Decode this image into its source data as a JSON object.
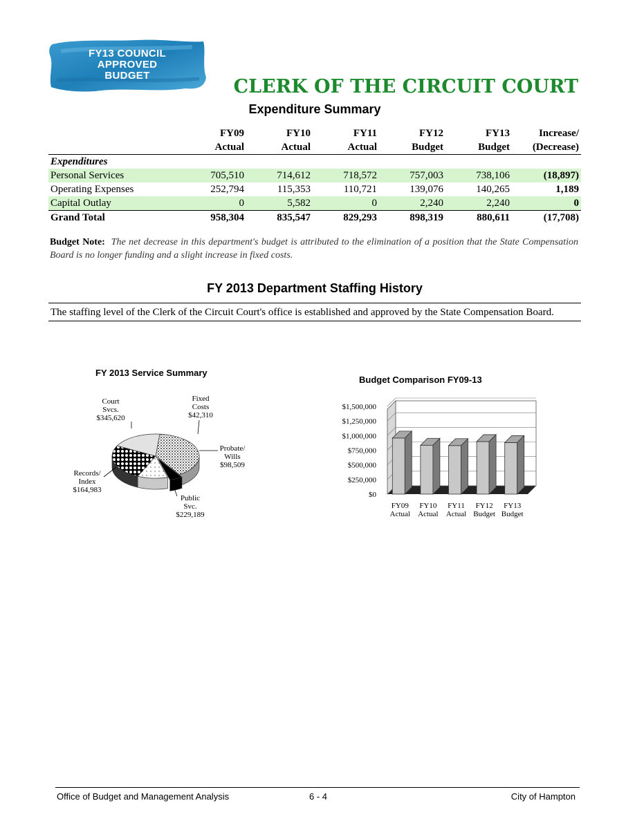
{
  "banner": {
    "line1": "FY13 COUNCIL",
    "line2": "APPROVED",
    "line3": "BUDGET"
  },
  "department_title": "CLERK OF THE CIRCUIT COURT",
  "expenditure_summary": {
    "title": "Expenditure Summary",
    "columns": [
      {
        "top": "FY09",
        "bottom": "Actual"
      },
      {
        "top": "FY10",
        "bottom": "Actual"
      },
      {
        "top": "FY11",
        "bottom": "Actual"
      },
      {
        "top": "FY12",
        "bottom": "Budget"
      },
      {
        "top": "FY13",
        "bottom": "Budget"
      },
      {
        "top": "Increase/",
        "bottom": "(Decrease)"
      }
    ],
    "section_label": "Expenditures",
    "rows": [
      {
        "label": "Personal Services",
        "values": [
          "705,510",
          "714,612",
          "718,572",
          "757,003",
          "738,106",
          "(18,897)"
        ]
      },
      {
        "label": "Operating Expenses",
        "values": [
          "252,794",
          "115,353",
          "110,721",
          "139,076",
          "140,265",
          "1,189"
        ]
      },
      {
        "label": "Capital Outlay",
        "values": [
          "0",
          "5,582",
          "0",
          "2,240",
          "2,240",
          "0"
        ]
      }
    ],
    "total": {
      "label": "Grand Total",
      "values": [
        "958,304",
        "835,547",
        "829,293",
        "898,319",
        "880,611",
        "(17,708)"
      ]
    }
  },
  "budget_note": {
    "label": "Budget Note:",
    "text": "The net decrease in this department's budget is attributed to the elimination of a position that the State Compensation Board is no longer funding and a slight increase in fixed costs."
  },
  "staffing": {
    "title": "FY 2013 Department Staffing History",
    "text": "The staffing level of the Clerk of the Circuit Court's office is established and approved by the State Compensation Board."
  },
  "service_summary": {
    "title": "FY 2013 Service Summary",
    "slices": [
      {
        "name_lines": [
          "Court",
          "Svcs."
        ],
        "value": "$345,620",
        "amount": 345620
      },
      {
        "name_lines": [
          "Fixed",
          "Costs"
        ],
        "value": "$42,310",
        "amount": 42310
      },
      {
        "name_lines": [
          "Probate/",
          "Wills"
        ],
        "value": "$98,509",
        "amount": 98509
      },
      {
        "name_lines": [
          "Public",
          "Svc."
        ],
        "value": "$229,189",
        "amount": 229189
      },
      {
        "name_lines": [
          "Records/",
          "Index"
        ],
        "value": "$164,983",
        "amount": 164983
      }
    ]
  },
  "chart_data": {
    "type": "bar",
    "title": "Budget Comparison FY09-13",
    "categories": [
      "FY09 Actual",
      "FY10 Actual",
      "FY11 Actual",
      "FY12 Budget",
      "FY13 Budget"
    ],
    "category_lines": [
      [
        "FY09",
        "Actual"
      ],
      [
        "FY10",
        "Actual"
      ],
      [
        "FY11",
        "Actual"
      ],
      [
        "FY12",
        "Budget"
      ],
      [
        "FY13",
        "Budget"
      ]
    ],
    "values": [
      958304,
      835547,
      829293,
      898319,
      880611
    ],
    "ylim": [
      0,
      1500000
    ],
    "yticks": [
      0,
      250000,
      500000,
      750000,
      1000000,
      1250000,
      1500000
    ],
    "ytick_labels": [
      "$0",
      "$250,000",
      "$500,000",
      "$750,000",
      "$1,000,000",
      "$1,250,000",
      "$1,500,000"
    ],
    "grid": true,
    "bar_color": "#c8c8c8"
  },
  "footer": {
    "left": "Office of Budget and Management Analysis",
    "center": "6 - 4",
    "right": "City of Hampton"
  }
}
